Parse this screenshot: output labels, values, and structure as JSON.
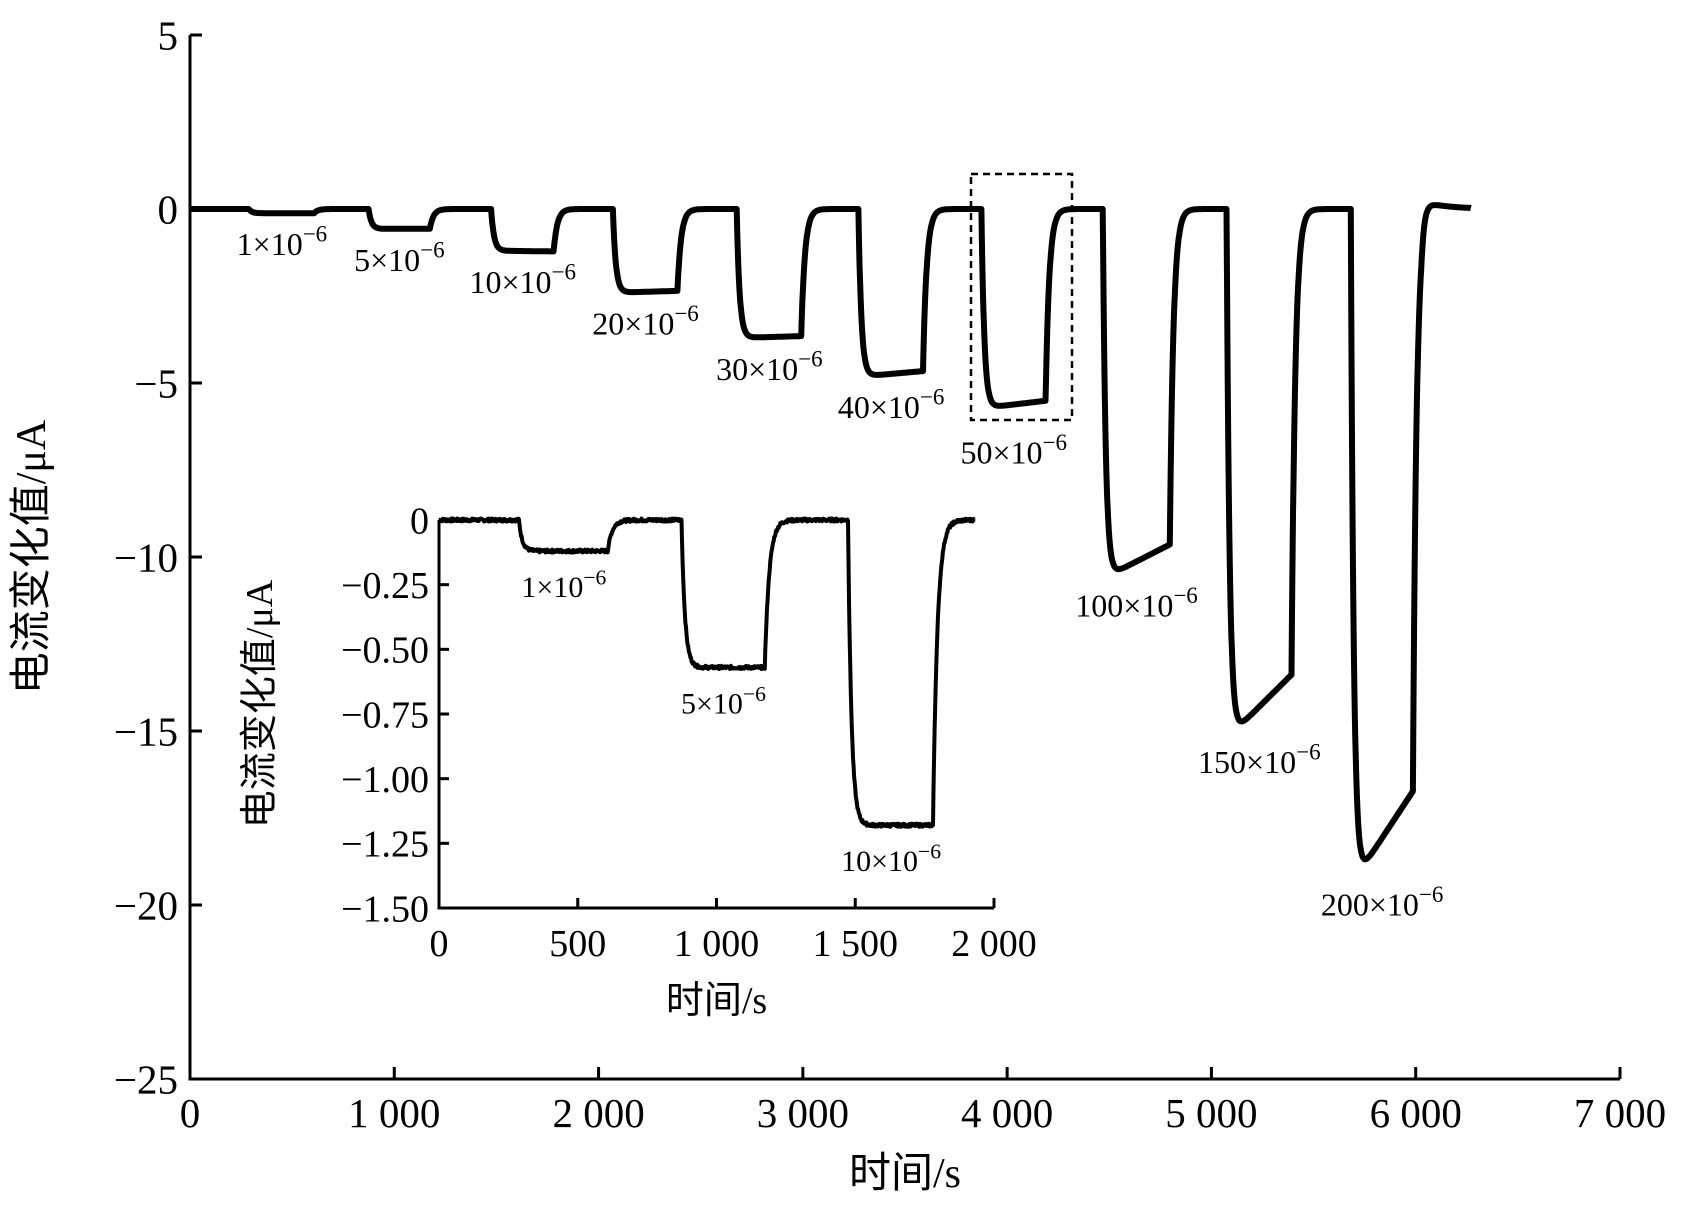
{
  "chart_data": [
    {
      "type": "line",
      "title": "",
      "xlabel": "时间/s",
      "ylabel": "电流变化值/μA",
      "xlim": [
        0,
        7000
      ],
      "ylim": [
        -25,
        5
      ],
      "xticks": [
        0,
        1000,
        2000,
        3000,
        4000,
        5000,
        6000,
        7000
      ],
      "xtick_labels": [
        "0",
        "1 000",
        "2 000",
        "3 000",
        "4 000",
        "5 000",
        "6 000",
        "7 000"
      ],
      "yticks": [
        5,
        0,
        -5,
        -10,
        -15,
        -20,
        -25
      ],
      "ytick_labels": [
        "5",
        "0",
        "−5",
        "−10",
        "−15",
        "−20",
        "−25"
      ],
      "grid": false,
      "x_end": 6270,
      "end_overshoot": 0.2,
      "steps": [
        {
          "label": "1×10",
          "exp": "−6",
          "start": 290,
          "end": 610,
          "min": -0.12,
          "end_value": -0.12
        },
        {
          "label": "5×10",
          "exp": "−6",
          "start": 875,
          "end": 1175,
          "min": -0.57,
          "end_value": -0.57
        },
        {
          "label": "10×10",
          "exp": "−6",
          "start": 1476,
          "end": 1782,
          "min": -1.2,
          "end_value": -1.22
        },
        {
          "label": "20×10",
          "exp": "−6",
          "start": 2072,
          "end": 2388,
          "min": -2.4,
          "end_value": -2.35
        },
        {
          "label": "30×10",
          "exp": "−6",
          "start": 2678,
          "end": 2994,
          "min": -3.7,
          "end_value": -3.65
        },
        {
          "label": "40×10",
          "exp": "−6",
          "start": 3274,
          "end": 3590,
          "min": -4.8,
          "end_value": -4.65
        },
        {
          "label": "50×10",
          "exp": "−6",
          "start": 3875,
          "end": 4190,
          "min": -5.7,
          "end_value": -5.5
        },
        {
          "label": "100×10",
          "exp": "−6",
          "start": 4470,
          "end": 4797,
          "min": -10.5,
          "end_value": -9.6
        },
        {
          "label": "150×10",
          "exp": "−6",
          "start": 5076,
          "end": 5393,
          "min": -15.0,
          "end_value": -13.3
        },
        {
          "label": "200×10",
          "exp": "−6",
          "start": 5683,
          "end": 5988,
          "min": -19.1,
          "end_value": -16.6
        }
      ],
      "annotation": "dashed box around 50×10−6 step (zoom region)"
    },
    {
      "type": "line",
      "title": "inset",
      "xlabel": "时间/s",
      "ylabel": "电流变化值/μA",
      "xlim": [
        0,
        2000
      ],
      "ylim": [
        -1.5,
        0
      ],
      "xticks": [
        0,
        500,
        1000,
        1500,
        2000
      ],
      "xtick_labels": [
        "0",
        "500",
        "1 000",
        "1 500",
        "2 000"
      ],
      "yticks": [
        0,
        -0.25,
        -0.5,
        -0.75,
        -1.0,
        -1.25,
        -1.5
      ],
      "ytick_labels": [
        "0",
        "−0.25",
        "−0.50",
        "−0.75",
        "−1.00",
        "−1.25",
        "−1.50"
      ],
      "grid": false,
      "x_end": 1930,
      "steps": [
        {
          "label": "1×10",
          "exp": "−6",
          "start": 290,
          "end": 610,
          "min": -0.12,
          "end_value": -0.12
        },
        {
          "label": "5×10",
          "exp": "−6",
          "start": 875,
          "end": 1175,
          "min": -0.57,
          "end_value": -0.57
        },
        {
          "label": "10×10",
          "exp": "−6",
          "start": 1476,
          "end": 1782,
          "min": -1.18,
          "end_value": -1.18
        }
      ]
    }
  ]
}
